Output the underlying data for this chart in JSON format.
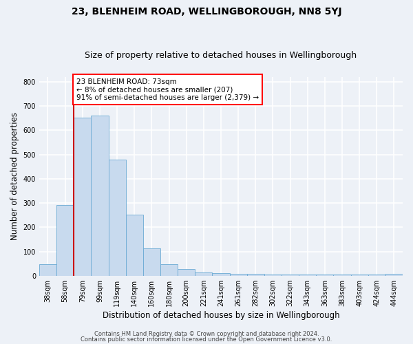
{
  "title": "23, BLENHEIM ROAD, WELLINGBOROUGH, NN8 5YJ",
  "subtitle": "Size of property relative to detached houses in Wellingborough",
  "xlabel": "Distribution of detached houses by size in Wellingborough",
  "ylabel": "Number of detached properties",
  "bin_labels": [
    "38sqm",
    "58sqm",
    "79sqm",
    "99sqm",
    "119sqm",
    "140sqm",
    "160sqm",
    "180sqm",
    "200sqm",
    "221sqm",
    "241sqm",
    "261sqm",
    "282sqm",
    "302sqm",
    "322sqm",
    "343sqm",
    "363sqm",
    "383sqm",
    "403sqm",
    "424sqm",
    "444sqm"
  ],
  "bar_heights": [
    48,
    293,
    651,
    661,
    478,
    253,
    114,
    48,
    27,
    14,
    12,
    8,
    7,
    5,
    5,
    4,
    4,
    4,
    4,
    4,
    8
  ],
  "bar_color": "#c8daee",
  "bar_edge_color": "#6aaad4",
  "vline_color": "#cc0000",
  "annotation_text_line1": "23 BLENHEIM ROAD: 73sqm",
  "annotation_text_line2": "← 8% of detached houses are smaller (207)",
  "annotation_text_line3": "91% of semi-detached houses are larger (2,379) →",
  "ylim": [
    0,
    820
  ],
  "yticks": [
    0,
    100,
    200,
    300,
    400,
    500,
    600,
    700,
    800
  ],
  "footer_line1": "Contains HM Land Registry data © Crown copyright and database right 2024.",
  "footer_line2": "Contains public sector information licensed under the Open Government Licence v3.0.",
  "bg_color": "#edf1f7",
  "plot_bg_color": "#edf1f7",
  "grid_color": "#ffffff",
  "title_fontsize": 10,
  "subtitle_fontsize": 9,
  "axis_label_fontsize": 8.5,
  "tick_fontsize": 7,
  "footer_fontsize": 6,
  "annot_fontsize": 7.5
}
